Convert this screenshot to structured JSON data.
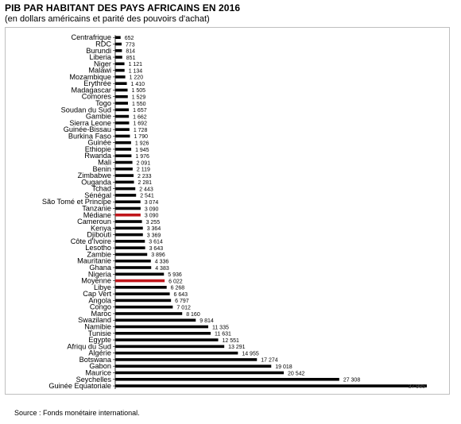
{
  "title": "PIB PAR HABITANT DES PAYS AFRICAINS EN 2016",
  "subtitle": "(en dollars américains et parité des pouvoirs d'achat)",
  "source": "Source : Fonds monétaire international.",
  "colors": {
    "bar": "#000000",
    "highlight": "#c0161b",
    "frame": "#bfbfbf"
  },
  "chart_data": {
    "type": "bar",
    "orientation": "horizontal",
    "title": "PIB PAR HABITANT DES PAYS AFRICAINS EN 2016",
    "subtitle": "(en dollars américains et parité des pouvoirs d'achat)",
    "xlim": [
      0,
      37985
    ],
    "grid": false,
    "legend": "none",
    "highlighted_categories": [
      "Médiane",
      "Moyenne"
    ],
    "categories": [
      "Centrafrique",
      "RDC",
      "Burundi",
      "Liberia",
      "Niger",
      "Malawi",
      "Mozambique",
      "Erythrée",
      "Madagascar",
      "Comores",
      "Togo",
      "Soudan du Sud",
      "Gambie",
      "Sierra Leone",
      "Guinée-Bissau",
      "Burkina Faso",
      "Guinée",
      "Ethiopie",
      "Rwanda",
      "Mali",
      "Benin",
      "Zimbabwe",
      "Ouganda",
      "Tchad",
      "Sénégal",
      "São Tomé et Principe",
      "Tanzanie",
      "Médiane",
      "Cameroun",
      "Kenya",
      "Djibouti",
      "Côte d'Ivoire",
      "Lesotho",
      "Zambie",
      "Mauritanie",
      "Ghana",
      "Nigeria",
      "Moyenne",
      "Libye",
      "Cap Vert",
      "Angola",
      "Congo",
      "Maroc",
      "Swaziland",
      "Namibie",
      "Tunisie",
      "Egypte",
      "Afriqu du Sud",
      "Algérie",
      "Botswana",
      "Gabon",
      "Maurice",
      "Seychelles",
      "Guinée Equatoriale"
    ],
    "values": [
      652,
      773,
      814,
      851,
      1121,
      1134,
      1220,
      1410,
      1505,
      1529,
      1550,
      1657,
      1662,
      1692,
      1728,
      1790,
      1926,
      1945,
      1976,
      2091,
      2119,
      2233,
      2281,
      2443,
      2541,
      3074,
      3090,
      3090,
      3255,
      3364,
      3369,
      3614,
      3643,
      3896,
      4336,
      4383,
      5936,
      6022,
      6268,
      6643,
      6797,
      7012,
      8160,
      9814,
      11335,
      11631,
      12551,
      13291,
      14955,
      17274,
      19018,
      20542,
      27308,
      37985
    ],
    "value_labels": [
      "652",
      "773",
      "814",
      "851",
      "1 121",
      "1 134",
      "1 220",
      "1 410",
      "1 505",
      "1 529",
      "1 550",
      "1 657",
      "1 662",
      "1 692",
      "1 728",
      "1 790",
      "1 926",
      "1 945",
      "1 976",
      "2 091",
      "2 119",
      "2 233",
      "2 281",
      "2 443",
      "2 541",
      "3 074",
      "3 090",
      "3 090",
      "3 255",
      "3 364",
      "3 369",
      "3 614",
      "3 643",
      "3 896",
      "4 336",
      "4 383",
      "5 936",
      "6 022",
      "6 268",
      "6 643",
      "6 797",
      "7 012",
      "8 160",
      "9 814",
      "11 335",
      "11 631",
      "12 551",
      "13 291",
      "14 955",
      "17 274",
      "19 018",
      "20 542",
      "27 308",
      "37 985"
    ]
  }
}
